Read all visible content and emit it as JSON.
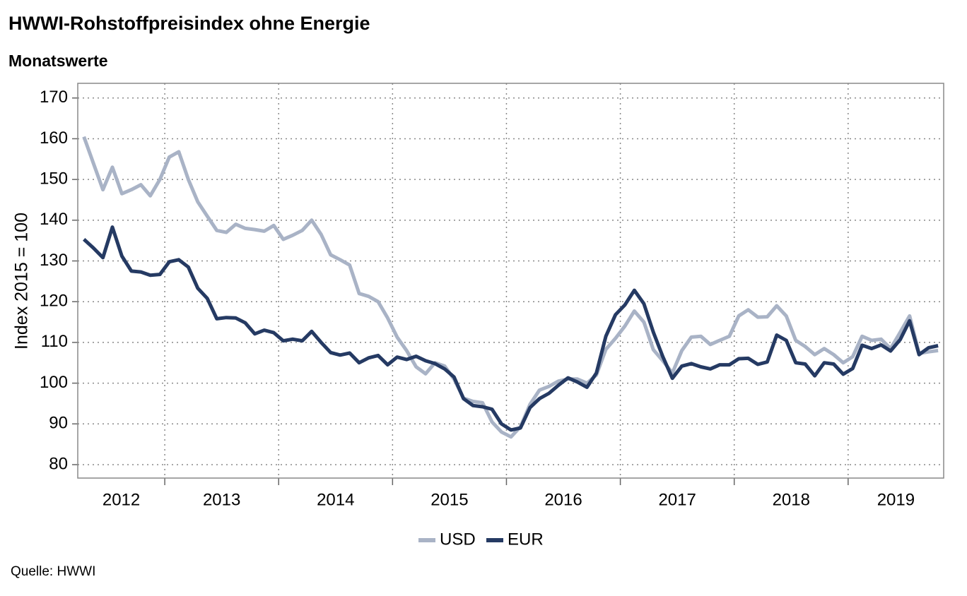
{
  "chart_data": {
    "type": "line",
    "title": "HWWI-Rohstoffpreisindex ohne Energie",
    "subtitle": "Monatswerte",
    "y_label": "Index 2015 = 100",
    "source": "Quelle: HWWI",
    "x": [
      2012.29,
      2012.373,
      2012.457,
      2012.54,
      2012.623,
      2012.707,
      2012.79,
      2012.873,
      2012.957,
      2013.04,
      2013.123,
      2013.207,
      2013.29,
      2013.373,
      2013.457,
      2013.54,
      2013.623,
      2013.707,
      2013.79,
      2013.873,
      2013.957,
      2014.04,
      2014.123,
      2014.207,
      2014.29,
      2014.373,
      2014.457,
      2014.54,
      2014.623,
      2014.707,
      2014.79,
      2014.873,
      2014.957,
      2015.04,
      2015.123,
      2015.207,
      2015.29,
      2015.373,
      2015.457,
      2015.54,
      2015.623,
      2015.707,
      2015.79,
      2015.873,
      2015.957,
      2016.04,
      2016.123,
      2016.207,
      2016.29,
      2016.373,
      2016.457,
      2016.54,
      2016.623,
      2016.707,
      2016.79,
      2016.873,
      2016.957,
      2017.04,
      2017.123,
      2017.207,
      2017.29,
      2017.373,
      2017.457,
      2017.54,
      2017.623,
      2017.707,
      2017.79,
      2017.873,
      2017.957,
      2018.04,
      2018.123,
      2018.207,
      2018.29,
      2018.373,
      2018.457,
      2018.54,
      2018.623,
      2018.707,
      2018.79,
      2018.873,
      2018.957,
      2019.04,
      2019.123,
      2019.207,
      2019.29,
      2019.373,
      2019.457,
      2019.54,
      2019.623,
      2019.707,
      2019.79
    ],
    "series": [
      {
        "name": "USD",
        "color": "#a9b3c6",
        "values": [
          160.5,
          154,
          147.5,
          153,
          146.5,
          147.5,
          148.7,
          146,
          150,
          155.5,
          156.8,
          150,
          144.5,
          141,
          137.5,
          137,
          139,
          138,
          137.7,
          137.3,
          138.7,
          135.3,
          136.3,
          137.5,
          140,
          136.5,
          131.5,
          130.3,
          129,
          122,
          121.3,
          120,
          116,
          111.3,
          108,
          104,
          102.3,
          105,
          104.2,
          101,
          96.3,
          95.5,
          95.2,
          90.5,
          88,
          86.8,
          89.3,
          94.8,
          98.3,
          99.2,
          100.5,
          101,
          101,
          100,
          102,
          108.3,
          111,
          114,
          117.7,
          115,
          108.2,
          105.5,
          102.5,
          108,
          111.3,
          111.5,
          109.5,
          110.5,
          111.5,
          116.5,
          118,
          116.2,
          116.3,
          119,
          116.5,
          110.5,
          109,
          107,
          108.5,
          107,
          105,
          106.5,
          111.5,
          110.5,
          110.8,
          108.5,
          112.5,
          116.5,
          107.3,
          107.7,
          108
        ]
      },
      {
        "name": "EUR",
        "color": "#253a63",
        "values": [
          135.3,
          133.2,
          130.8,
          138.3,
          131.2,
          127.5,
          127.3,
          126.5,
          126.7,
          129.8,
          130.3,
          128.5,
          123.3,
          120.8,
          115.8,
          116.1,
          116,
          114.8,
          112.1,
          113,
          112.4,
          110.4,
          110.8,
          110.4,
          112.7,
          110,
          107.5,
          106.9,
          107.4,
          105,
          106.2,
          106.8,
          104.5,
          106.4,
          105.8,
          106.6,
          105.5,
          104.8,
          103.5,
          101.5,
          96.2,
          94.5,
          94.2,
          93.6,
          90,
          88.5,
          89,
          94,
          96.2,
          97.5,
          99.5,
          101.3,
          100.3,
          99,
          102.5,
          111.5,
          116.8,
          119.2,
          122.8,
          119.5,
          112.5,
          106.5,
          101.2,
          104.2,
          104.8,
          104,
          103.5,
          104.5,
          104.5,
          106,
          106.1,
          104.6,
          105.2,
          111.8,
          110.5,
          105,
          104.7,
          101.8,
          105,
          104.7,
          102.2,
          103.6,
          109.3,
          108.5,
          109.4,
          107.9,
          110.7,
          115.3,
          107,
          108.7,
          109.2
        ]
      }
    ],
    "xlim": [
      2012.236,
      2019.839
    ],
    "xticks": [
      2013,
      2014,
      2015,
      2016,
      2017,
      2018,
      2019
    ],
    "x_labels": [
      {
        "value": 2012.5,
        "label": "2012"
      },
      {
        "value": 2013.5,
        "label": "2013"
      },
      {
        "value": 2014.5,
        "label": "2014"
      },
      {
        "value": 2015.5,
        "label": "2015"
      },
      {
        "value": 2016.5,
        "label": "2016"
      },
      {
        "value": 2017.5,
        "label": "2017"
      },
      {
        "value": 2018.5,
        "label": "2018"
      },
      {
        "value": 2019.5,
        "label": "2019"
      }
    ],
    "ylim": [
      76.7,
      173.6
    ],
    "yticks": [
      80,
      90,
      100,
      110,
      120,
      130,
      140,
      150,
      160,
      170
    ],
    "grid": true,
    "legend": "bottom"
  }
}
